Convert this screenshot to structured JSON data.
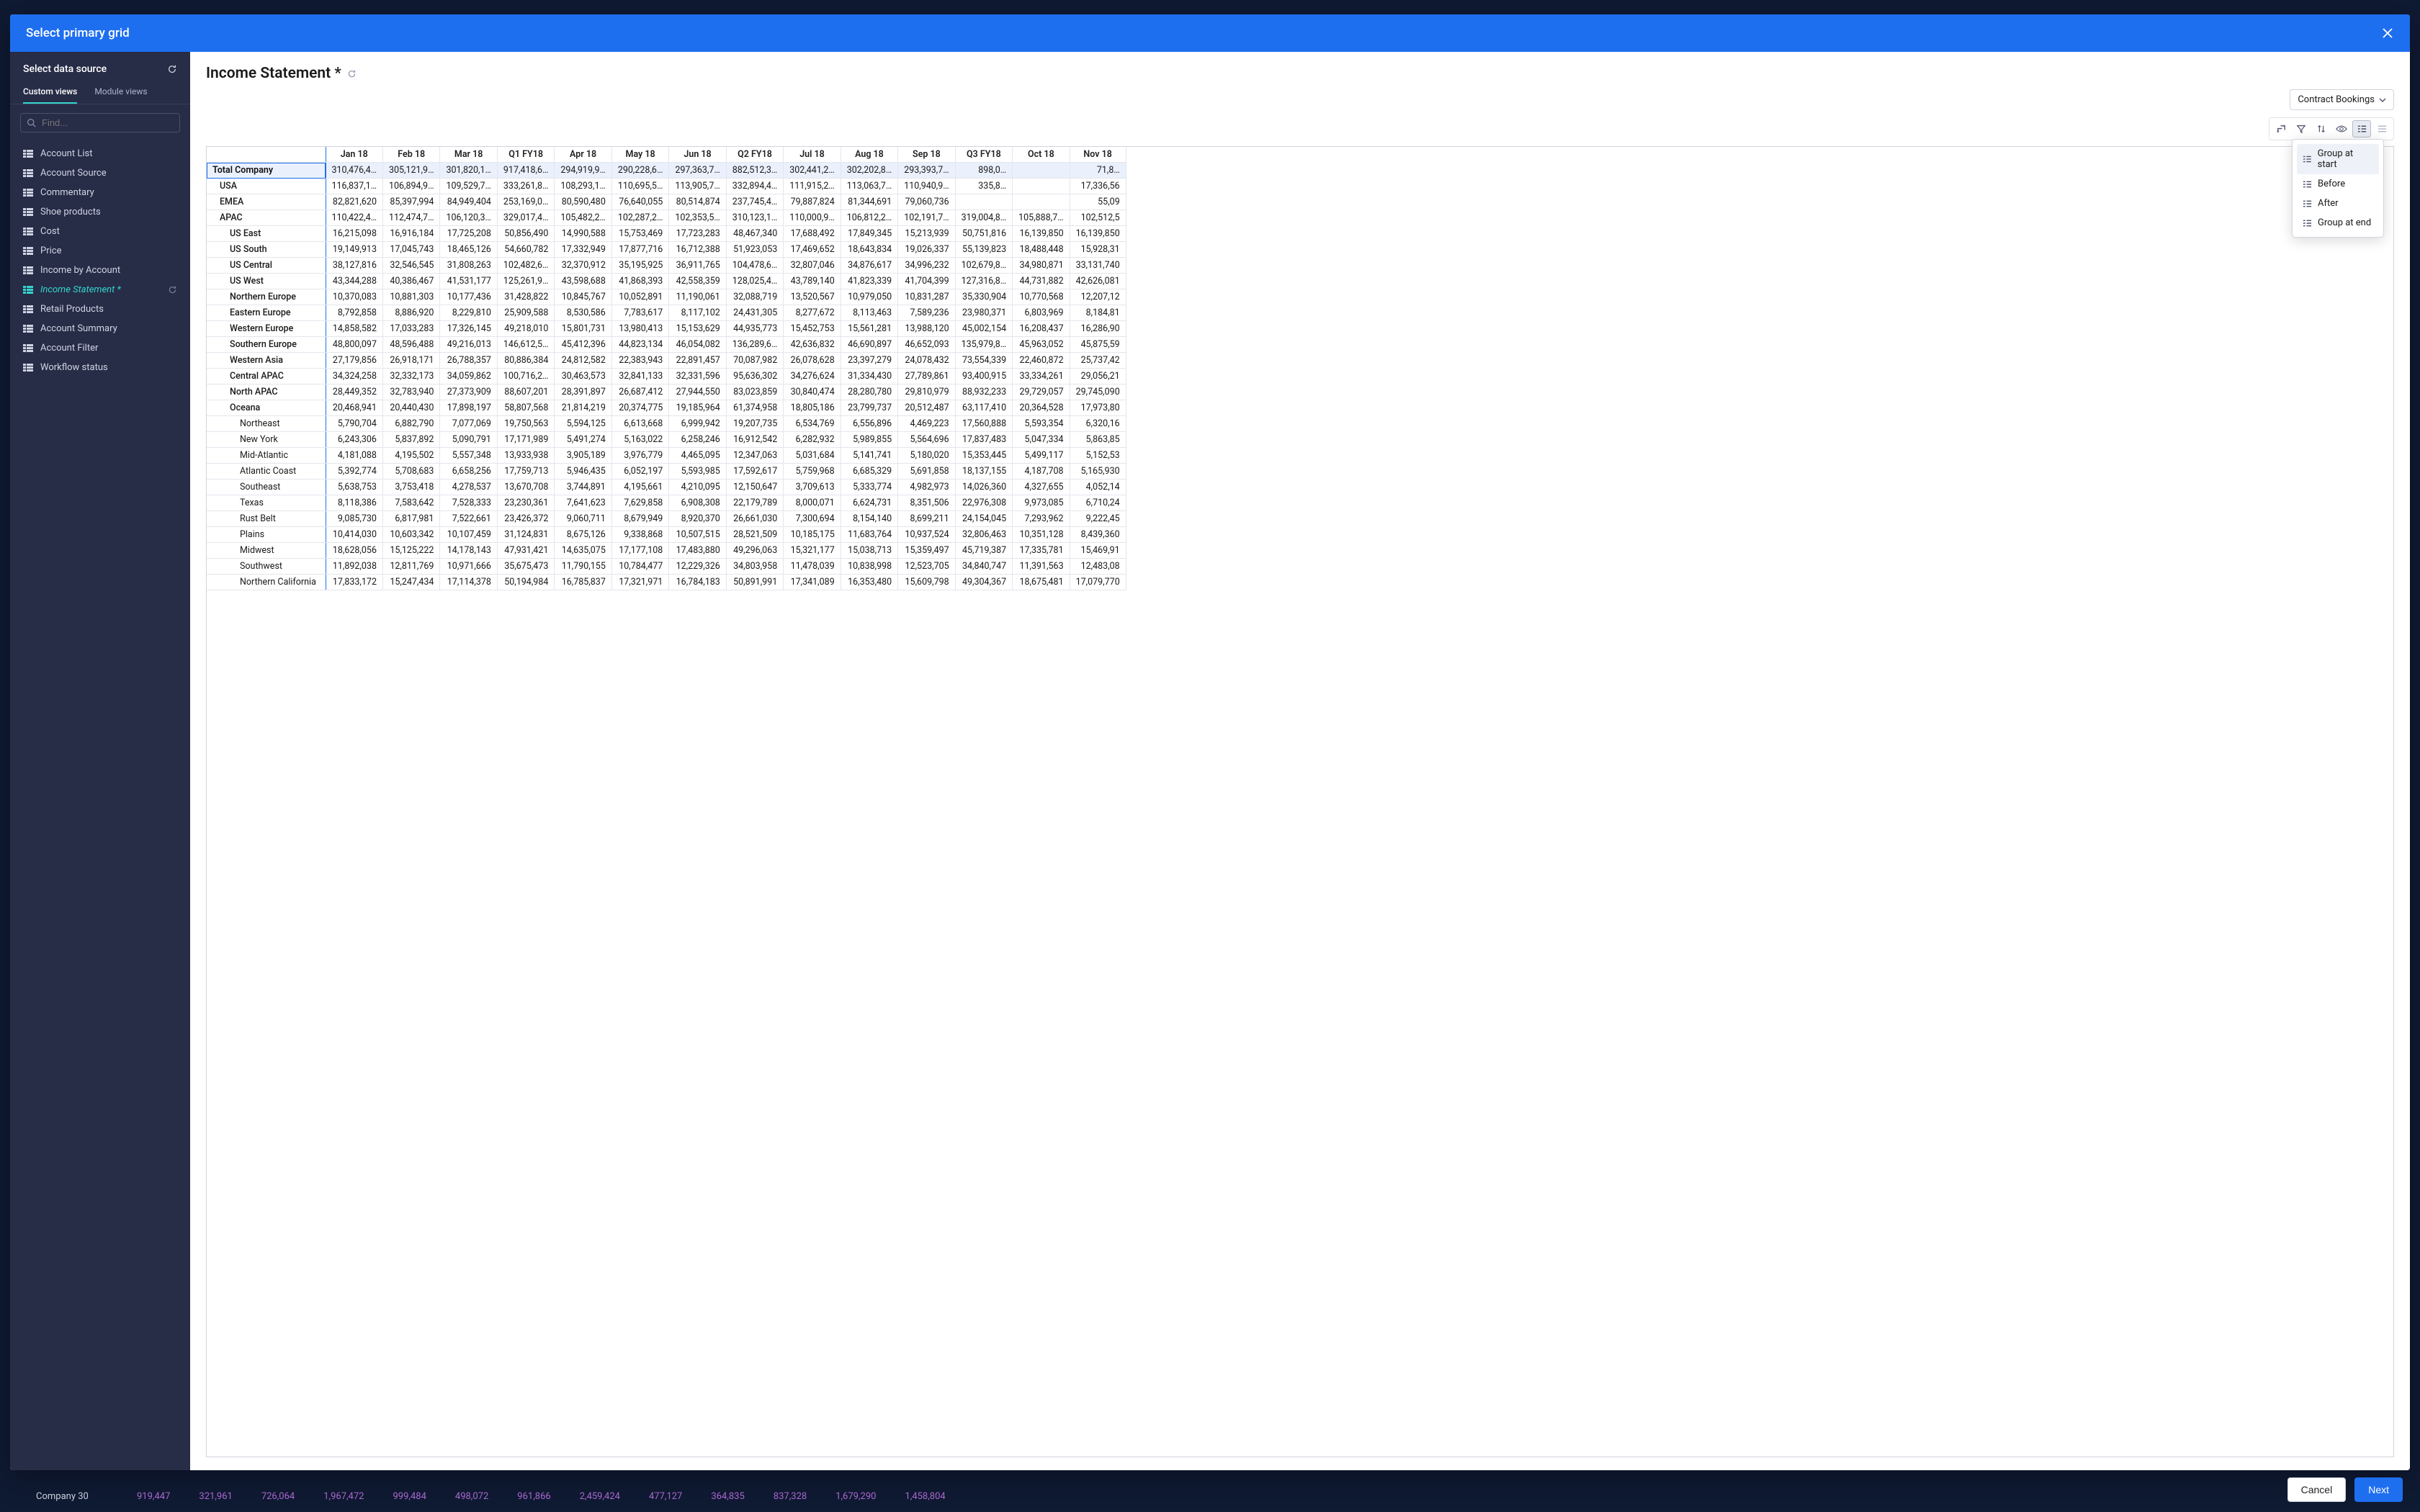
{
  "backdrop_row": {
    "label": "Company 30",
    "cells": [
      "919,447",
      "321,961",
      "726,064",
      "1,967,472",
      "999,484",
      "498,072",
      "961,866",
      "2,459,424",
      "477,127",
      "364,835",
      "837,328",
      "1,679,290",
      "1,458,804"
    ]
  },
  "modal": {
    "title": "Select primary grid",
    "cancel": "Cancel",
    "next": "Next"
  },
  "sidebar": {
    "title": "Select data source",
    "tabs": [
      "Custom views",
      "Module views"
    ],
    "active_tab": 0,
    "search_placeholder": "Find...",
    "items": [
      {
        "label": "Account List"
      },
      {
        "label": "Account Source"
      },
      {
        "label": "Commentary"
      },
      {
        "label": "Shoe products"
      },
      {
        "label": "Cost"
      },
      {
        "label": "Price"
      },
      {
        "label": "Income by Account"
      },
      {
        "label": "Income Statement *",
        "active": true,
        "refresh": true
      },
      {
        "label": "Retail Products"
      },
      {
        "label": "Account Summary"
      },
      {
        "label": "Account Filter"
      },
      {
        "label": "Workflow status"
      }
    ]
  },
  "main": {
    "title": "Income Statement *",
    "dropdown": "Contract Bookings",
    "popup": [
      "Group at start",
      "Before",
      "After",
      "Group at end"
    ],
    "popup_selected": 0,
    "columns": [
      "Jan 18",
      "Feb 18",
      "Mar 18",
      "Q1 FY18",
      "Apr 18",
      "May 18",
      "Jun 18",
      "Q2 FY18",
      "Jul 18",
      "Aug 18",
      "Sep 18",
      "Q3 FY18",
      "Oct 18",
      "Nov 18"
    ],
    "rows": [
      {
        "lvl": 0,
        "sel": true,
        "label": "Total Company",
        "cells": [
          "310,476,4…",
          "305,121,9…",
          "301,820,1…",
          "917,418,6…",
          "294,919,9…",
          "290,228,6…",
          "297,363,7…",
          "882,512,3…",
          "302,441,2…",
          "302,202,8…",
          "293,393,7…",
          "898,0…",
          "",
          "71,8…"
        ]
      },
      {
        "lvl": 1,
        "label": "USA",
        "cells": [
          "116,837,1…",
          "106,894,9…",
          "109,529,7…",
          "333,261,8…",
          "108,293,1…",
          "110,695,5…",
          "113,905,7…",
          "332,894,4…",
          "111,915,2…",
          "113,063,7…",
          "110,940,9…",
          "335,8…",
          "",
          "17,336,56"
        ]
      },
      {
        "lvl": 1,
        "label": "EMEA",
        "cells": [
          "82,821,620",
          "85,397,994",
          "84,949,404",
          "253,169,0…",
          "80,590,480",
          "76,640,055",
          "80,514,874",
          "237,745,4…",
          "79,887,824",
          "81,344,691",
          "79,060,736",
          "",
          "",
          "55,09"
        ]
      },
      {
        "lvl": 1,
        "label": "APAC",
        "cells": [
          "110,422,4…",
          "112,474,7…",
          "106,120,3…",
          "329,017,4…",
          "105,482,2…",
          "102,287,2…",
          "102,353,5…",
          "310,123,1…",
          "110,000,9…",
          "106,812,2…",
          "102,191,7…",
          "319,004,8…",
          "105,888,7…",
          "102,512,5"
        ]
      },
      {
        "lvl": 2,
        "label": "US East",
        "cells": [
          "16,215,098",
          "16,916,184",
          "17,725,208",
          "50,856,490",
          "14,990,588",
          "15,753,469",
          "17,723,283",
          "48,467,340",
          "17,688,492",
          "17,849,345",
          "15,213,939",
          "50,751,816",
          "16,139,850",
          "16,139,850"
        ]
      },
      {
        "lvl": 2,
        "label": "US South",
        "cells": [
          "19,149,913",
          "17,045,743",
          "18,465,126",
          "54,660,782",
          "17,332,949",
          "17,877,716",
          "16,712,388",
          "51,923,053",
          "17,469,652",
          "18,643,834",
          "19,026,337",
          "55,139,823",
          "18,488,448",
          "15,928,31"
        ]
      },
      {
        "lvl": 2,
        "label": "US Central",
        "cells": [
          "38,127,816",
          "32,546,545",
          "31,808,263",
          "102,482,6…",
          "32,370,912",
          "35,195,925",
          "36,911,765",
          "104,478,6…",
          "32,807,046",
          "34,876,617",
          "34,996,232",
          "102,679,8…",
          "34,980,871",
          "33,131,740"
        ]
      },
      {
        "lvl": 2,
        "label": "US West",
        "cells": [
          "43,344,288",
          "40,386,467",
          "41,531,177",
          "125,261,9…",
          "43,598,688",
          "41,868,393",
          "42,558,359",
          "128,025,4…",
          "43,789,140",
          "41,823,339",
          "41,704,399",
          "127,316,8…",
          "44,731,882",
          "42,626,081"
        ]
      },
      {
        "lvl": 2,
        "label": "Northern Europe",
        "cells": [
          "10,370,083",
          "10,881,303",
          "10,177,436",
          "31,428,822",
          "10,845,767",
          "10,052,891",
          "11,190,061",
          "32,088,719",
          "13,520,567",
          "10,979,050",
          "10,831,287",
          "35,330,904",
          "10,770,568",
          "12,207,12"
        ]
      },
      {
        "lvl": 2,
        "label": "Eastern Europe",
        "cells": [
          "8,792,858",
          "8,886,920",
          "8,229,810",
          "25,909,588",
          "8,530,586",
          "7,783,617",
          "8,117,102",
          "24,431,305",
          "8,277,672",
          "8,113,463",
          "7,589,236",
          "23,980,371",
          "6,803,969",
          "8,184,81"
        ]
      },
      {
        "lvl": 2,
        "label": "Western Europe",
        "cells": [
          "14,858,582",
          "17,033,283",
          "17,326,145",
          "49,218,010",
          "15,801,731",
          "13,980,413",
          "15,153,629",
          "44,935,773",
          "15,452,753",
          "15,561,281",
          "13,988,120",
          "45,002,154",
          "16,208,437",
          "16,286,90"
        ]
      },
      {
        "lvl": 2,
        "label": "Southern Europe",
        "cells": [
          "48,800,097",
          "48,596,488",
          "49,216,013",
          "146,612,5…",
          "45,412,396",
          "44,823,134",
          "46,054,082",
          "136,289,6…",
          "42,636,832",
          "46,690,897",
          "46,652,093",
          "135,979,8…",
          "45,963,052",
          "45,875,59"
        ]
      },
      {
        "lvl": 2,
        "label": "Western Asia",
        "cells": [
          "27,179,856",
          "26,918,171",
          "26,788,357",
          "80,886,384",
          "24,812,582",
          "22,383,943",
          "22,891,457",
          "70,087,982",
          "26,078,628",
          "23,397,279",
          "24,078,432",
          "73,554,339",
          "22,460,872",
          "25,737,42"
        ]
      },
      {
        "lvl": 2,
        "label": "Central APAC",
        "cells": [
          "34,324,258",
          "32,332,173",
          "34,059,862",
          "100,716,2…",
          "30,463,573",
          "32,841,133",
          "32,331,596",
          "95,636,302",
          "34,276,624",
          "31,334,430",
          "27,789,861",
          "93,400,915",
          "33,334,261",
          "29,056,21"
        ]
      },
      {
        "lvl": 2,
        "label": "North APAC",
        "cells": [
          "28,449,352",
          "32,783,940",
          "27,373,909",
          "88,607,201",
          "28,391,897",
          "26,687,412",
          "27,944,550",
          "83,023,859",
          "30,840,474",
          "28,280,780",
          "29,810,979",
          "88,932,233",
          "29,729,057",
          "29,745,090"
        ]
      },
      {
        "lvl": 2,
        "label": "Oceana",
        "cells": [
          "20,468,941",
          "20,440,430",
          "17,898,197",
          "58,807,568",
          "21,814,219",
          "20,374,775",
          "19,185,964",
          "61,374,958",
          "18,805,186",
          "23,799,737",
          "20,512,487",
          "63,117,410",
          "20,364,528",
          "17,973,80"
        ]
      },
      {
        "lvl": 3,
        "label": "Northeast",
        "cells": [
          "5,790,704",
          "6,882,790",
          "7,077,069",
          "19,750,563",
          "5,594,125",
          "6,613,668",
          "6,999,942",
          "19,207,735",
          "6,534,769",
          "6,556,896",
          "4,469,223",
          "17,560,888",
          "5,593,354",
          "6,320,16"
        ]
      },
      {
        "lvl": 3,
        "label": "New York",
        "cells": [
          "6,243,306",
          "5,837,892",
          "5,090,791",
          "17,171,989",
          "5,491,274",
          "5,163,022",
          "6,258,246",
          "16,912,542",
          "6,282,932",
          "5,989,855",
          "5,564,696",
          "17,837,483",
          "5,047,334",
          "5,863,85"
        ]
      },
      {
        "lvl": 3,
        "label": "Mid-Atlantic",
        "cells": [
          "4,181,088",
          "4,195,502",
          "5,557,348",
          "13,933,938",
          "3,905,189",
          "3,976,779",
          "4,465,095",
          "12,347,063",
          "5,031,684",
          "5,141,741",
          "5,180,020",
          "15,353,445",
          "5,499,117",
          "5,152,53"
        ]
      },
      {
        "lvl": 3,
        "label": "Atlantic Coast",
        "cells": [
          "5,392,774",
          "5,708,683",
          "6,658,256",
          "17,759,713",
          "5,946,435",
          "6,052,197",
          "5,593,985",
          "17,592,617",
          "5,759,968",
          "6,685,329",
          "5,691,858",
          "18,137,155",
          "4,187,708",
          "5,165,930"
        ]
      },
      {
        "lvl": 3,
        "label": "Southeast",
        "cells": [
          "5,638,753",
          "3,753,418",
          "4,278,537",
          "13,670,708",
          "3,744,891",
          "4,195,661",
          "4,210,095",
          "12,150,647",
          "3,709,613",
          "5,333,774",
          "4,982,973",
          "14,026,360",
          "4,327,655",
          "4,052,14"
        ]
      },
      {
        "lvl": 3,
        "label": "Texas",
        "cells": [
          "8,118,386",
          "7,583,642",
          "7,528,333",
          "23,230,361",
          "7,641,623",
          "7,629,858",
          "6,908,308",
          "22,179,789",
          "8,000,071",
          "6,624,731",
          "8,351,506",
          "22,976,308",
          "9,973,085",
          "6,710,24"
        ]
      },
      {
        "lvl": 3,
        "label": "Rust Belt",
        "cells": [
          "9,085,730",
          "6,817,981",
          "7,522,661",
          "23,426,372",
          "9,060,711",
          "8,679,949",
          "8,920,370",
          "26,661,030",
          "7,300,694",
          "8,154,140",
          "8,699,211",
          "24,154,045",
          "7,293,962",
          "9,222,45"
        ]
      },
      {
        "lvl": 3,
        "label": "Plains",
        "cells": [
          "10,414,030",
          "10,603,342",
          "10,107,459",
          "31,124,831",
          "8,675,126",
          "9,338,868",
          "10,507,515",
          "28,521,509",
          "10,185,175",
          "11,683,764",
          "10,937,524",
          "32,806,463",
          "10,351,128",
          "8,439,360"
        ]
      },
      {
        "lvl": 3,
        "label": "Midwest",
        "cells": [
          "18,628,056",
          "15,125,222",
          "14,178,143",
          "47,931,421",
          "14,635,075",
          "17,177,108",
          "17,483,880",
          "49,296,063",
          "15,321,177",
          "15,038,713",
          "15,359,497",
          "45,719,387",
          "17,335,781",
          "15,469,91"
        ]
      },
      {
        "lvl": 3,
        "label": "Southwest",
        "cells": [
          "11,892,038",
          "12,811,769",
          "10,971,666",
          "35,675,473",
          "11,790,155",
          "10,784,477",
          "12,229,326",
          "34,803,958",
          "11,478,039",
          "10,838,998",
          "12,523,705",
          "34,840,747",
          "11,391,563",
          "12,483,08"
        ]
      },
      {
        "lvl": 3,
        "label": "Northern California",
        "cells": [
          "17,833,172",
          "15,247,434",
          "17,114,378",
          "50,194,984",
          "16,785,837",
          "17,321,971",
          "16,784,183",
          "50,891,991",
          "17,341,089",
          "16,353,480",
          "15,609,798",
          "49,304,367",
          "18,675,481",
          "17,079,770"
        ]
      }
    ]
  }
}
